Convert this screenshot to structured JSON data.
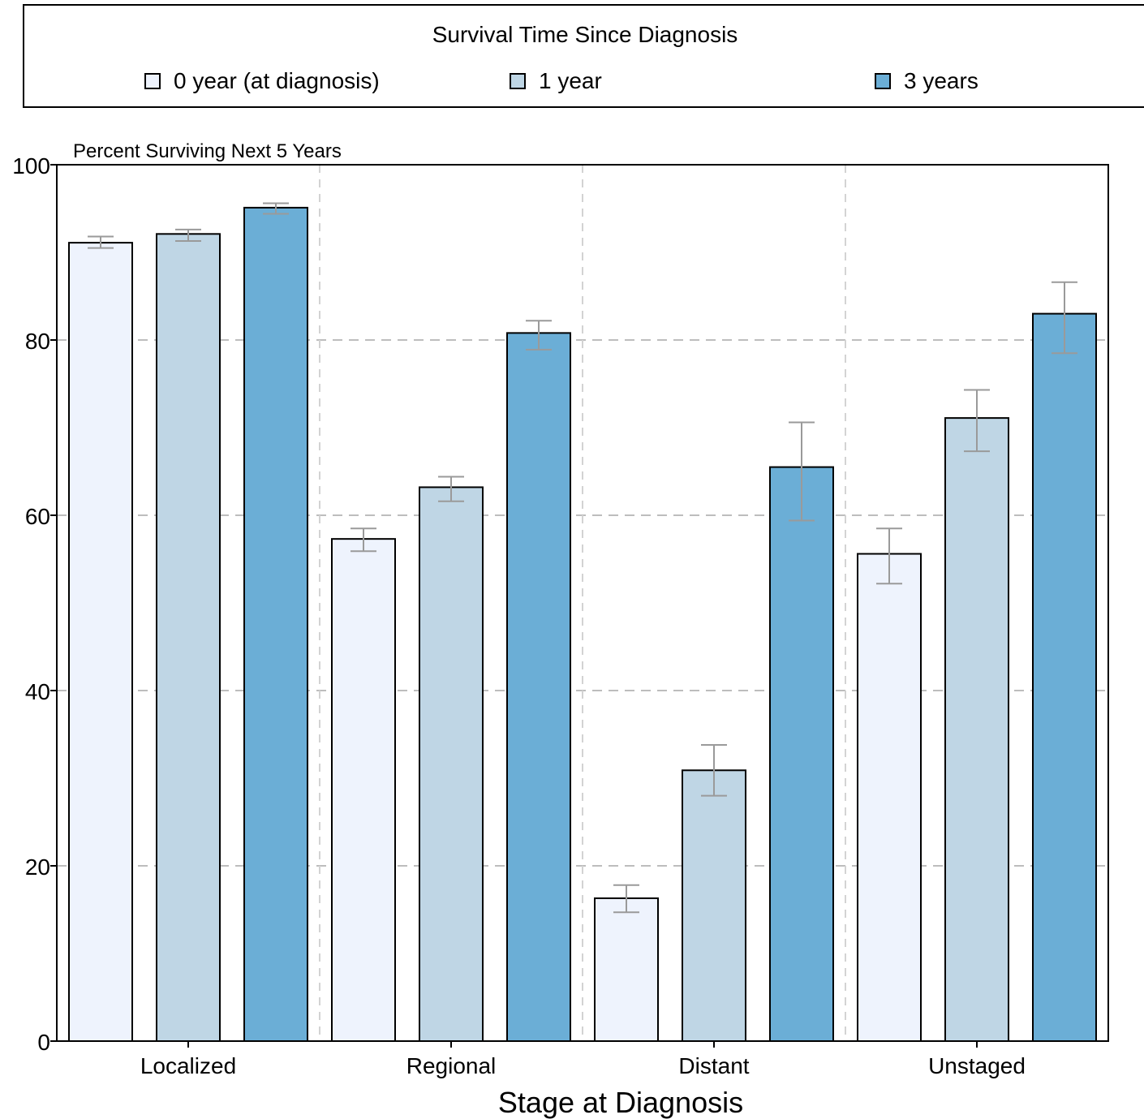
{
  "legend": {
    "title": "Survival Time Since Diagnosis",
    "items": [
      {
        "label": "0 year (at diagnosis)",
        "color": "#eef3fd"
      },
      {
        "label": "1 year",
        "color": "#bfd6e5"
      },
      {
        "label": "3 years",
        "color": "#6baed6"
      }
    ]
  },
  "chart_data": {
    "type": "bar",
    "y_title": "Percent Surviving Next 5 Years",
    "xlabel": "Stage at Diagnosis",
    "categories": [
      "Localized",
      "Regional",
      "Distant",
      "Unstaged"
    ],
    "ylim": [
      0,
      100
    ],
    "yticks": [
      0,
      20,
      40,
      60,
      80,
      100
    ],
    "grid": true,
    "legend_position": "top",
    "series": [
      {
        "name": "0 year (at diagnosis)",
        "color": "#eef3fd",
        "values": [
          91.1,
          57.3,
          16.3,
          55.6
        ],
        "ci_low": [
          90.5,
          55.9,
          14.7,
          52.2
        ],
        "ci_high": [
          91.8,
          58.5,
          17.8,
          58.5
        ]
      },
      {
        "name": "1 year",
        "color": "#bfd6e5",
        "values": [
          92.1,
          63.2,
          30.9,
          71.1
        ],
        "ci_low": [
          91.3,
          61.6,
          28.0,
          67.3
        ],
        "ci_high": [
          92.6,
          64.4,
          33.8,
          74.3
        ]
      },
      {
        "name": "3 years",
        "color": "#6baed6",
        "values": [
          95.1,
          80.8,
          65.5,
          83.0
        ],
        "ci_low": [
          94.4,
          78.9,
          59.4,
          78.5
        ],
        "ci_high": [
          95.6,
          82.2,
          70.6,
          86.6
        ]
      }
    ]
  }
}
